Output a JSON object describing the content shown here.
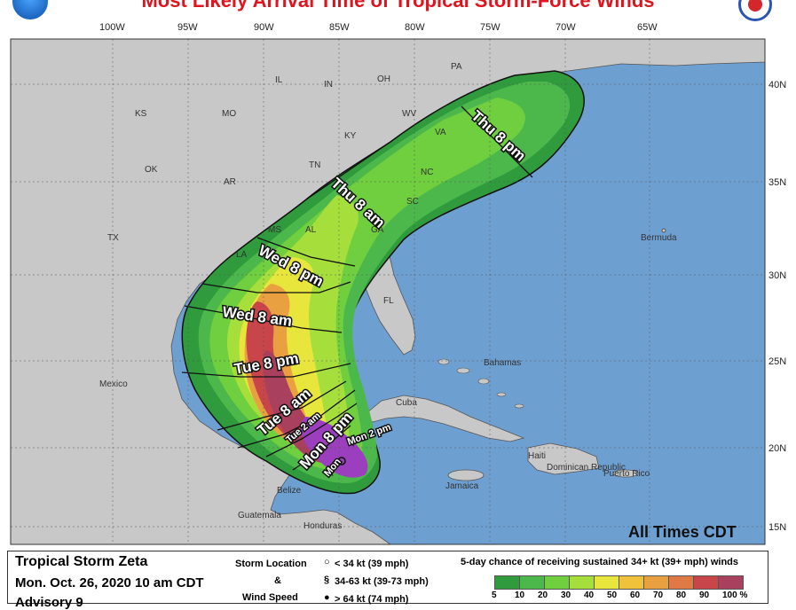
{
  "header": {
    "title": "Most Likely Arrival Time of Tropical Storm-Force Winds"
  },
  "map": {
    "lon_labels": [
      "100W",
      "95W",
      "90W",
      "85W",
      "80W",
      "75W",
      "70W",
      "65W"
    ],
    "lat_labels": [
      "40N",
      "35N",
      "30N",
      "25N",
      "20N",
      "15N"
    ],
    "states": [
      "PA",
      "IL",
      "IN",
      "OH",
      "KS",
      "MO",
      "KY",
      "WV",
      "VA",
      "OK",
      "AR",
      "TN",
      "NC",
      "SC",
      "MS",
      "AL",
      "GA",
      "TX",
      "LA",
      "FL"
    ],
    "places": [
      "Bermuda",
      "Bahamas",
      "Cuba",
      "Mexico",
      "Haiti",
      "Dominican Republic",
      "Puerto Rico",
      "Jamaica",
      "Belize",
      "Guatemala",
      "Honduras"
    ],
    "arrival_times": [
      "Thu 8 pm",
      "Thu 8 am",
      "Wed 8 pm",
      "Wed 8 am",
      "Tue 8 pm",
      "Tue 8 am",
      "Tue 2 am",
      "Mon 8 pm",
      "Mon 2 pm",
      "Mon"
    ],
    "all_times_note": "All Times CDT",
    "colors": {
      "land": "#c8c8c8",
      "ocean": "#6e9fd1",
      "green_dark": "#2f9b3c",
      "green": "#4cb84c",
      "lime": "#8fd63a",
      "yellow": "#f0e040",
      "orange": "#e8a040",
      "red": "#c8454a",
      "maroon": "#9b3a5a",
      "purple": "#9b3fbf"
    }
  },
  "legend": {
    "storm_name": "Tropical Storm Zeta",
    "advisory_date": "Mon. Oct. 26, 2020  10 am CDT",
    "advisory_number": "Advisory 9",
    "storm_location_label": "Storm Location",
    "and_label": "&",
    "wind_speed_label": "Wind Speed",
    "key1": "< 34 kt (39 mph)",
    "key2": "34-63 kt (39-73 mph)",
    "key3": "> 64 kt (74 mph)",
    "chance_title": "5-day chance of receiving sustained 34+ kt (39+ mph) winds",
    "scale_labels": [
      "5",
      "10",
      "20",
      "30",
      "40",
      "50",
      "60",
      "70",
      "80",
      "90",
      "100 %"
    ],
    "scale_colors": [
      "#2f9b3c",
      "#4cb84c",
      "#6fcf3f",
      "#a6df3c",
      "#e8e63c",
      "#f0c23c",
      "#e8a040",
      "#e07a45",
      "#c8454a",
      "#a8405e",
      "#9b3fbf"
    ]
  }
}
